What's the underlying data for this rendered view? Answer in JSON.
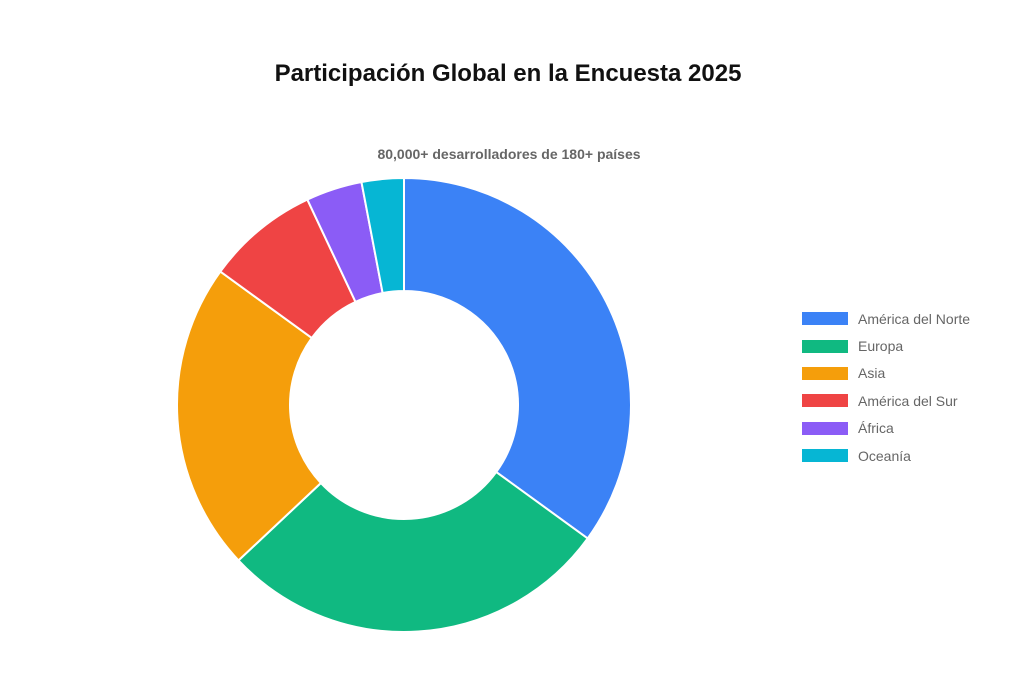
{
  "chart_data": {
    "type": "pie",
    "title": "Participación Global en la Encuesta 2025",
    "subtitle": "80,000+ desarrolladores de 180+ países",
    "categories": [
      "América del Norte",
      "Europa",
      "Asia",
      "América del Sur",
      "África",
      "Oceanía"
    ],
    "values": [
      35,
      28,
      22,
      8,
      4,
      3
    ],
    "colors": [
      "#3b82f6",
      "#10b981",
      "#f59e0b",
      "#ef4444",
      "#8b5cf6",
      "#06b6d4"
    ],
    "legend_position": "right"
  }
}
